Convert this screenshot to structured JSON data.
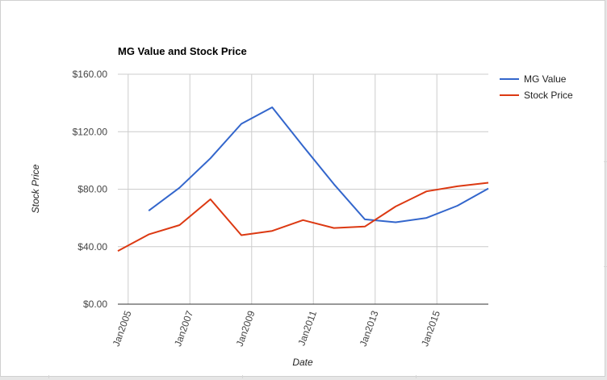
{
  "chart_data": {
    "type": "line",
    "title": "MG Value and Stock Price",
    "xlabel": "Date",
    "ylabel": "Stock Price",
    "xlim": [
      "2004-09-01",
      "2016-09-01"
    ],
    "ylim": [
      0,
      160
    ],
    "y_ticks": [
      0,
      40,
      80,
      120,
      160
    ],
    "y_tick_labels": [
      "$0.00",
      "$40.00",
      "$80.00",
      "$120.00",
      "$160.00"
    ],
    "x_ticks": [
      "2005-01-01",
      "2007-01-01",
      "2009-01-01",
      "2011-01-01",
      "2013-01-01",
      "2015-01-01"
    ],
    "x_tick_labels": [
      "Jan2005",
      "Jan2007",
      "Jan2009",
      "Jan2011",
      "Jan2013",
      "Jan2015"
    ],
    "grid": true,
    "legend_position": "top-right",
    "series": [
      {
        "name": "MG Value",
        "color": "#3366cc",
        "points": [
          {
            "x": "2005-09-01",
            "y": 65.0
          },
          {
            "x": "2006-09-01",
            "y": 81.0
          },
          {
            "x": "2007-09-01",
            "y": 101.5
          },
          {
            "x": "2008-09-01",
            "y": 125.5
          },
          {
            "x": "2009-09-01",
            "y": 137.0
          },
          {
            "x": "2010-09-01",
            "y": 110.0
          },
          {
            "x": "2011-09-01",
            "y": 83.5
          },
          {
            "x": "2012-09-01",
            "y": 59.0
          },
          {
            "x": "2013-09-01",
            "y": 57.0
          },
          {
            "x": "2014-09-01",
            "y": 60.0
          },
          {
            "x": "2015-09-01",
            "y": 68.5
          },
          {
            "x": "2016-09-01",
            "y": 80.5
          }
        ]
      },
      {
        "name": "Stock Price",
        "color": "#dc3912",
        "points": [
          {
            "x": "2004-09-01",
            "y": 37.0
          },
          {
            "x": "2005-09-01",
            "y": 48.5
          },
          {
            "x": "2006-09-01",
            "y": 55.0
          },
          {
            "x": "2007-09-01",
            "y": 73.0
          },
          {
            "x": "2008-09-01",
            "y": 48.0
          },
          {
            "x": "2009-09-01",
            "y": 51.0
          },
          {
            "x": "2010-09-01",
            "y": 58.5
          },
          {
            "x": "2011-09-01",
            "y": 53.0
          },
          {
            "x": "2012-09-01",
            "y": 54.0
          },
          {
            "x": "2013-09-01",
            "y": 68.0
          },
          {
            "x": "2014-09-01",
            "y": 78.5
          },
          {
            "x": "2015-09-01",
            "y": 82.0
          },
          {
            "x": "2016-09-01",
            "y": 84.5
          }
        ]
      }
    ]
  }
}
